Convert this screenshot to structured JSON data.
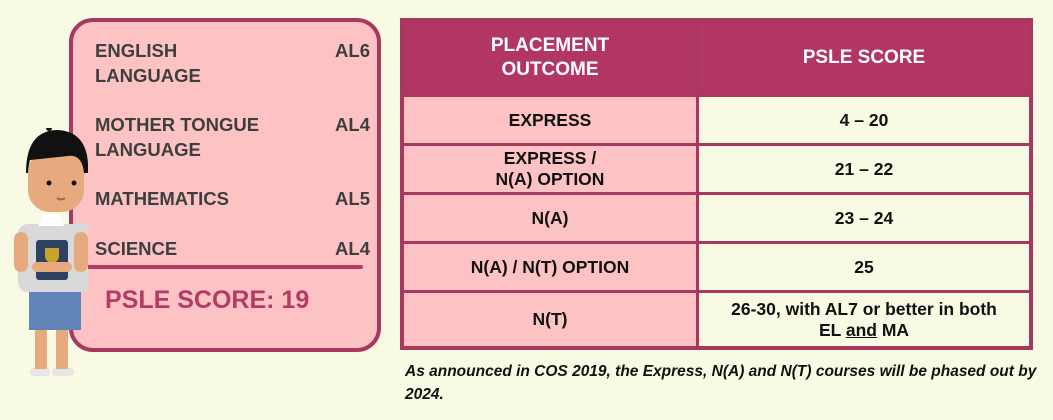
{
  "subjects": [
    {
      "name_line1": "ENGLISH",
      "name_line2": "LANGUAGE",
      "grade": "AL6"
    },
    {
      "name_line1": "MOTHER TONGUE",
      "name_line2": "LANGUAGE",
      "grade": "AL4"
    },
    {
      "name_line1": "MATHEMATICS",
      "name_line2": "",
      "grade": "AL5"
    },
    {
      "name_line1": "SCIENCE",
      "name_line2": "",
      "grade": "AL4"
    }
  ],
  "psle_score_label": "PSLE SCORE: 19",
  "table": {
    "headers": {
      "col1_line1": "PLACEMENT",
      "col1_line2": "OUTCOME",
      "col2": "PSLE SCORE"
    },
    "rows": [
      {
        "outcome_line1": "EXPRESS",
        "outcome_line2": "",
        "score_line1": "4 – 20",
        "score_pre": "",
        "score_underlined": "",
        "score_post": ""
      },
      {
        "outcome_line1": "EXPRESS /",
        "outcome_line2": "N(A) OPTION",
        "score_line1": "21 – 22",
        "score_pre": "",
        "score_underlined": "",
        "score_post": ""
      },
      {
        "outcome_line1": "N(A)",
        "outcome_line2": "",
        "score_line1": "23 – 24",
        "score_pre": "",
        "score_underlined": "",
        "score_post": ""
      },
      {
        "outcome_line1": "N(A) / N(T) OPTION",
        "outcome_line2": "",
        "score_line1": "25",
        "score_pre": "",
        "score_underlined": "",
        "score_post": ""
      },
      {
        "outcome_line1": "N(T)",
        "outcome_line2": "",
        "score_line1": "26-30, with AL7 or better in both",
        "score_pre": "EL ",
        "score_underlined": "and",
        "score_post": " MA"
      }
    ]
  },
  "footnote": "As announced in COS 2019, the Express, N(A) and N(T) courses will be phased out by 2024.",
  "colors": {
    "accent": "#b23663",
    "card_fill": "#fdc3c4",
    "background": "#f8fae4"
  }
}
